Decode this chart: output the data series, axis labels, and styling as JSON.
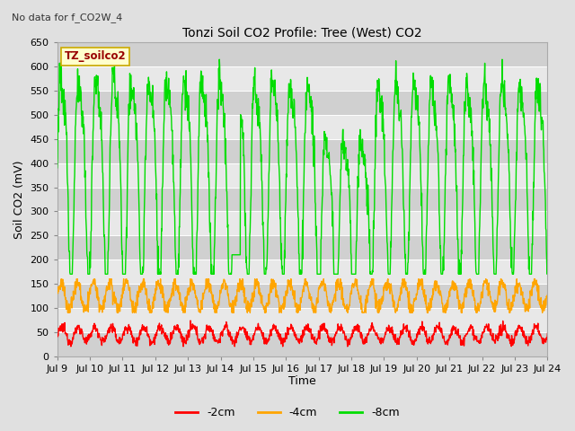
{
  "title": "Tonzi Soil CO2 Profile: Tree (West) CO2",
  "top_left_text": "No data for f_CO2W_4",
  "ylabel": "Soil CO2 (mV)",
  "xlabel": "Time",
  "legend_label": "TZ_soilco2",
  "ylim": [
    0,
    650
  ],
  "xlim_days": [
    9,
    24
  ],
  "x_ticks": [
    9,
    10,
    11,
    12,
    13,
    14,
    15,
    16,
    17,
    18,
    19,
    20,
    21,
    22,
    23,
    24
  ],
  "x_tick_labels": [
    "Jul 9",
    "Jul 10",
    "Jul 11",
    "Jul 12",
    "Jul 13",
    "Jul 14",
    "Jul 15",
    "Jul 16",
    "Jul 17",
    "Jul 18",
    "Jul 19",
    "Jul 20",
    "Jul 21",
    "Jul 22",
    "Jul 23",
    "Jul 24"
  ],
  "color_2cm": "#ff0000",
  "color_4cm": "#ffa500",
  "color_8cm": "#00dd00",
  "bg_color": "#e0e0e0",
  "plot_bg_color": "#d0d0d0",
  "band_light": "#e8e8e8",
  "legend_bg": "#ffffcc",
  "legend_edge": "#ccaa00",
  "figsize": [
    6.4,
    4.8
  ],
  "dpi": 100
}
